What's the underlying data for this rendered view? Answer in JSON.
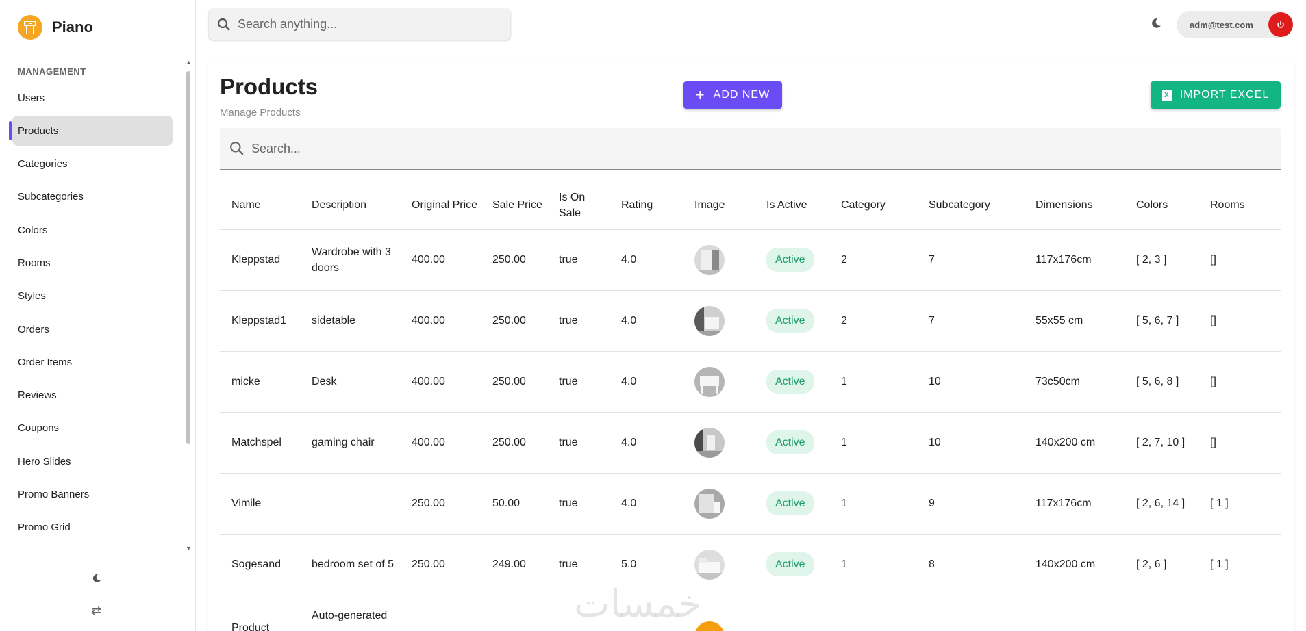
{
  "brand": {
    "name": "Piano",
    "accent": "#f5a623"
  },
  "sidebar": {
    "section_label": "MANAGEMENT",
    "items": [
      {
        "label": "Users"
      },
      {
        "label": "Products",
        "active": true
      },
      {
        "label": "Categories"
      },
      {
        "label": "Subcategories"
      },
      {
        "label": "Colors"
      },
      {
        "label": "Rooms"
      },
      {
        "label": "Styles"
      },
      {
        "label": "Orders"
      },
      {
        "label": "Order Items"
      },
      {
        "label": "Reviews"
      },
      {
        "label": "Coupons"
      },
      {
        "label": "Hero Slides"
      },
      {
        "label": "Promo Banners"
      },
      {
        "label": "Promo Grid"
      }
    ]
  },
  "topbar": {
    "search_placeholder": "Search anything...",
    "user_email": "adm@test.com"
  },
  "page": {
    "title": "Products",
    "subtitle": "Manage Products",
    "add_label": "ADD NEW",
    "import_label": "IMPORT EXCEL",
    "table_search_placeholder": "Search...",
    "primary_color": "#6a4cf5",
    "success_color": "#13b683"
  },
  "table": {
    "columns": [
      "Name",
      "Description",
      "Original Price",
      "Sale Price",
      "Is On Sale",
      "Rating",
      "Image",
      "Is Active",
      "Category",
      "Subcategory",
      "Dimensions",
      "Colors",
      "Rooms"
    ],
    "rows": [
      {
        "name": "Kleppstad",
        "description": "Wardrobe with 3 doors",
        "original_price": "400.00",
        "sale_price": "250.00",
        "is_on_sale": "true",
        "rating": "4.0",
        "image": "wardrobe-photo",
        "is_active": "Active",
        "category": "2",
        "subcategory": "7",
        "dimensions": "117x176cm",
        "colors": "[ 2, 3 ]",
        "rooms": "[]"
      },
      {
        "name": "Kleppstad1",
        "description": "sidetable",
        "original_price": "400.00",
        "sale_price": "250.00",
        "is_on_sale": "true",
        "rating": "4.0",
        "image": "sidetable-photo",
        "is_active": "Active",
        "category": "2",
        "subcategory": "7",
        "dimensions": "55x55 cm",
        "colors": "[ 5, 6, 7 ]",
        "rooms": "[]"
      },
      {
        "name": "micke",
        "description": "Desk",
        "original_price": "400.00",
        "sale_price": "250.00",
        "is_on_sale": "true",
        "rating": "4.0",
        "image": "desk-photo",
        "is_active": "Active",
        "category": "1",
        "subcategory": "10",
        "dimensions": "73c50cm",
        "colors": "[ 5, 6, 8 ]",
        "rooms": "[]"
      },
      {
        "name": "Matchspel",
        "description": "gaming chair",
        "original_price": "400.00",
        "sale_price": "250.00",
        "is_on_sale": "true",
        "rating": "4.0",
        "image": "chair-photo",
        "is_active": "Active",
        "category": "1",
        "subcategory": "10",
        "dimensions": "140x200 cm",
        "colors": "[ 2, 7, 10 ]",
        "rooms": "[]"
      },
      {
        "name": "Vimile",
        "description": "",
        "original_price": "250.00",
        "sale_price": "50.00",
        "is_on_sale": "true",
        "rating": "4.0",
        "image": "sofa-photo",
        "is_active": "Active",
        "category": "1",
        "subcategory": "9",
        "dimensions": "117x176cm",
        "colors": "[ 2, 6, 14 ]",
        "rooms": "[ 1 ]"
      },
      {
        "name": "Sogesand",
        "description": "bedroom set of 5",
        "original_price": "250.00",
        "sale_price": "249.00",
        "is_on_sale": "true",
        "rating": "5.0",
        "image": "bedroom-photo",
        "is_active": "Active",
        "category": "1",
        "subcategory": "8",
        "dimensions": "140x200 cm",
        "colors": "[ 2, 6 ]",
        "rooms": "[ 1 ]"
      },
      {
        "name": "Product",
        "description": "Auto-generated",
        "original_price": "",
        "sale_price": "",
        "is_on_sale": "",
        "rating": "",
        "image": "orange-placeholder",
        "is_active": "",
        "category": "",
        "subcategory": "",
        "dimensions": "",
        "colors": "",
        "rooms": ""
      }
    ]
  },
  "watermark": "خمسات"
}
